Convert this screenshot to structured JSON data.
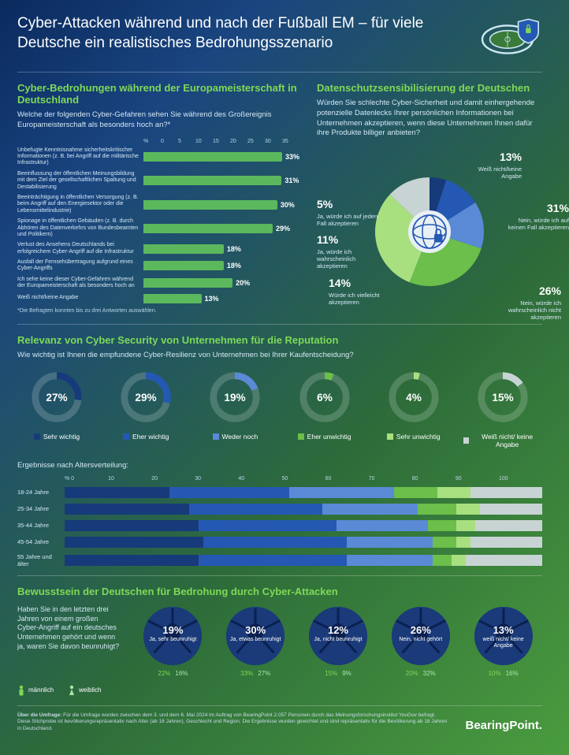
{
  "title": "Cyber-Attacken während und nach der Fußball EM – für viele Deutsche ein realistisches Bedrohungsszenario",
  "colors": {
    "accent_green": "#7ed957",
    "bar_green": "#5cb85c",
    "navy": "#173a7a",
    "blue": "#2458b3",
    "lightblue": "#5a8ad6",
    "mid_green": "#6bbf4a",
    "light_green": "#a8e080",
    "grey": "#c8d4d4",
    "ring_bg": "rgba(255,255,255,0.18)"
  },
  "sec1": {
    "subtitle": "Cyber-Bedrohungen während der Europameisterschaft in Deutschland",
    "question": "Welche der folgenden Cyber-Gefahren sehen Sie während des Großereignis Europameisterschaft als besonders hoch an?*",
    "axis": [
      "%",
      "0",
      "5",
      "10",
      "15",
      "20",
      "25",
      "30",
      "35"
    ],
    "max": 35,
    "bars": [
      {
        "label": "Unbefugte Kenntnisnahme sicherheitskritischer Informationen (z. B. bei Angriff auf die militärische Infrastruktur)",
        "val": 33
      },
      {
        "label": "Beeinflussung der öffentlichen Meinungsbildung mit dem Ziel der gesellschaftlichen Spaltung und Destabilisierung",
        "val": 31
      },
      {
        "label": "Beeinträchtigung in öffentlichen Versorgung (z. B. beim Angriff auf den Energiesektor oder die Lebensmittelindustrie)",
        "val": 30
      },
      {
        "label": "Spionage in öffentlichen Gebäuden (z. B. durch Abhören des Datenverkehrs von Bundesbeamten und Politikern)",
        "val": 29
      },
      {
        "label": "Verlust des Ansehens Deutschlands bei erfolgreichem Cyber-Angriff auf die Infrastruktur",
        "val": 18
      },
      {
        "label": "Ausfall der Fernsehübertragung aufgrund eines Cyber-Angriffs",
        "val": 18
      },
      {
        "label": "Ich sehe keine dieser Cyber-Gefahren während der Europameisterschaft als besonders hoch an",
        "val": 20
      },
      {
        "label": "Weiß nicht/keine Angabe",
        "val": 13
      }
    ],
    "footnote": "*Die Befragten konnten bis zu drei Antworten auswählen."
  },
  "sec2": {
    "subtitle": "Datenschutzsensibilisierung der Deutschen",
    "question": "Würden Sie schlechte Cyber-Sicherheit und damit einhergehende potenzielle Datenlecks Ihrer persönlichen Informationen bei Unternehmen akzeptieren, wenn diese Unternehmen Ihnen dafür ihre Produkte billiger anbieten?",
    "slices": [
      {
        "pct": 5,
        "label": "Ja, würde ich auf jeden Fall akzeptieren",
        "color": "#173a7a"
      },
      {
        "pct": 11,
        "label": "Ja, würde ich wahrscheinlich akzeptieren",
        "color": "#2458b3"
      },
      {
        "pct": 14,
        "label": "Würde ich vielleicht akzeptieren",
        "color": "#5a8ad6"
      },
      {
        "pct": 26,
        "label": "Nein, würde ich wahrscheinlich nicht akzeptieren",
        "color": "#6bbf4a"
      },
      {
        "pct": 31,
        "label": "Nein, würde ich auf keinen Fall akzeptieren",
        "color": "#a8e080"
      },
      {
        "pct": 13,
        "label": "Weiß nicht/keine Angabe",
        "color": "#c8d4d4"
      }
    ]
  },
  "sec3": {
    "subtitle": "Relevanz von Cyber Security von Unternehmen für die Reputation",
    "question": "Wie wichtig ist Ihnen die empfundene Cyber-Resilienz von Unternehmen bei Ihrer Kaufentscheidung?",
    "donuts": [
      {
        "pct": 27,
        "label": "Sehr wichtig",
        "color": "#173a7a"
      },
      {
        "pct": 29,
        "label": "Eher wichtig",
        "color": "#2458b3"
      },
      {
        "pct": 19,
        "label": "Weder noch",
        "color": "#5a8ad6"
      },
      {
        "pct": 6,
        "label": "Eher unwichtig",
        "color": "#6bbf4a"
      },
      {
        "pct": 4,
        "label": "Sehr unwichtig",
        "color": "#a8e080"
      },
      {
        "pct": 15,
        "label": "Weiß nicht/ keine Angabe",
        "color": "#c8d4d4"
      }
    ],
    "stacked_title": "Ergebnisse nach Altersverteilung:",
    "stacked_axis": [
      "%  0",
      "10",
      "20",
      "30",
      "40",
      "50",
      "60",
      "70",
      "80",
      "90",
      "100"
    ],
    "stacked": [
      {
        "label": "18-24 Jahre",
        "seg": [
          22,
          25,
          22,
          9,
          7,
          15
        ]
      },
      {
        "label": "25-34 Jahre",
        "seg": [
          26,
          28,
          20,
          8,
          5,
          13
        ]
      },
      {
        "label": "35-44 Jahre",
        "seg": [
          28,
          29,
          19,
          6,
          4,
          14
        ]
      },
      {
        "label": "45-54 Jahre",
        "seg": [
          29,
          30,
          18,
          5,
          3,
          15
        ]
      },
      {
        "label": "55 Jahre und älter",
        "seg": [
          28,
          31,
          18,
          4,
          3,
          16
        ]
      }
    ],
    "seg_colors": [
      "#173a7a",
      "#2458b3",
      "#5a8ad6",
      "#6bbf4a",
      "#a8e080",
      "#c8d4d4"
    ]
  },
  "sec4": {
    "subtitle": "Bewusstsein der Deutschen für Bedrohung durch Cyber-Attacken",
    "question": "Haben Sie in den letzten drei Jahren von einem großen Cyber-Angriff auf ein deutsches Unternehmen gehört und wenn ja, waren Sie davon beunruhigt?",
    "balls": [
      {
        "pct": 19,
        "label": "Ja, sehr beunruhigt",
        "m": 22,
        "f": 16
      },
      {
        "pct": 30,
        "label": "Ja, etwas beunruhigt",
        "m": 33,
        "f": 27
      },
      {
        "pct": 12,
        "label": "Ja, nicht beunruhigt",
        "m": 15,
        "f": 9
      },
      {
        "pct": 26,
        "label": "Nein, nicht gehört",
        "m": 20,
        "f": 32
      },
      {
        "pct": 13,
        "label": "weiß nicht/ keine Angabe",
        "m": 10,
        "f": 16
      }
    ],
    "key_m": "männlich",
    "key_f": "weiblich"
  },
  "about_label": "Über die Umfrage:",
  "about": "Für die Umfrage wurden zwischen dem 3. und dem 6. Mai 2024 im Auftrag von BearingPoint 2.057 Personen durch das Meinungsforschungsinstitut YouGov befragt. Diese Stichprobe ist bevölkerungsrepräsentativ nach Alter (ab 18 Jahren), Geschlecht und Region. Die Ergebnisse wurden gewichtet und sind repräsentativ für die Bevölkerung ab 18 Jahren in Deutschland.",
  "brand": "BearingPoint."
}
